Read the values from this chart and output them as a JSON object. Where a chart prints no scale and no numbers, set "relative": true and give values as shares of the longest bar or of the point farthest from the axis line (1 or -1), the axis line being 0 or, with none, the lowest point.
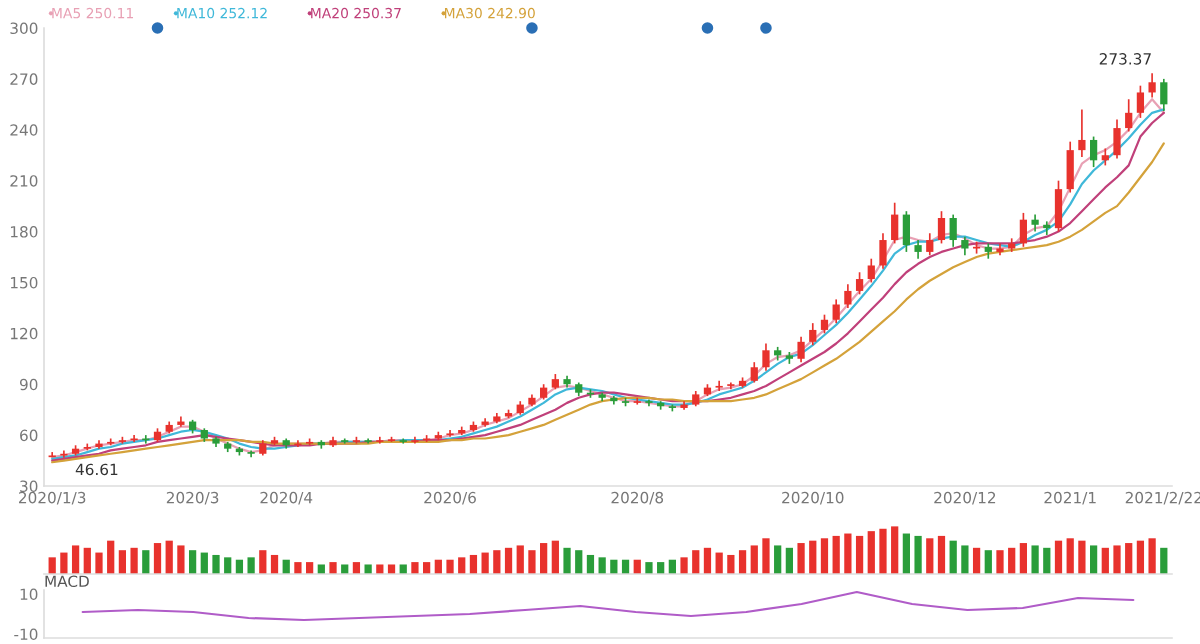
{
  "chart_data": [
    {
      "type": "candlestick",
      "ylim": [
        30,
        300
      ],
      "yticks": [
        30,
        60,
        90,
        120,
        150,
        180,
        210,
        240,
        270,
        300
      ],
      "legend": "top left",
      "categories": [
        "2020/1/3",
        null,
        null,
        null,
        null,
        null,
        null,
        null,
        null,
        null,
        null,
        null,
        "2020/3",
        null,
        null,
        null,
        null,
        null,
        null,
        null,
        "2020/4",
        null,
        null,
        null,
        null,
        null,
        null,
        null,
        null,
        null,
        null,
        null,
        null,
        null,
        "2020/6",
        null,
        null,
        null,
        null,
        null,
        null,
        null,
        null,
        null,
        null,
        null,
        null,
        null,
        null,
        null,
        "2020/8",
        null,
        null,
        null,
        null,
        null,
        null,
        null,
        null,
        null,
        null,
        null,
        null,
        null,
        null,
        "2020/10",
        null,
        null,
        null,
        null,
        null,
        null,
        null,
        null,
        null,
        null,
        null,
        null,
        "2020/12",
        null,
        null,
        null,
        null,
        null,
        null,
        null,
        null,
        "2021/1",
        null,
        null,
        null,
        null,
        null,
        null,
        null,
        "2021/2/22"
      ],
      "ohlc": [
        [
          47,
          50,
          47,
          48
        ],
        [
          48,
          51,
          46.61,
          49
        ],
        [
          49,
          54,
          48,
          52
        ],
        [
          52,
          55,
          51,
          53
        ],
        [
          53,
          57,
          52,
          55
        ],
        [
          55,
          58,
          54,
          56
        ],
        [
          56,
          59,
          55,
          57
        ],
        [
          57,
          60,
          56,
          58
        ],
        [
          58,
          60,
          55,
          57
        ],
        [
          57,
          64,
          56,
          62
        ],
        [
          62,
          68,
          61,
          66
        ],
        [
          66,
          71,
          65,
          68
        ],
        [
          68,
          69,
          61,
          63
        ],
        [
          63,
          64,
          56,
          58
        ],
        [
          58,
          59,
          53,
          55
        ],
        [
          55,
          56,
          50,
          52
        ],
        [
          52,
          53,
          48,
          50
        ],
        [
          50,
          51,
          47,
          49
        ],
        [
          49,
          57,
          48,
          55
        ],
        [
          55,
          59,
          54,
          57
        ],
        [
          57,
          58,
          52,
          54
        ],
        [
          54,
          57,
          53,
          55
        ],
        [
          55,
          58,
          54,
          56
        ],
        [
          56,
          57,
          52,
          54
        ],
        [
          54,
          59,
          53,
          57
        ],
        [
          57,
          58,
          55,
          56
        ],
        [
          56,
          59,
          55,
          57
        ],
        [
          57,
          58,
          55,
          56
        ],
        [
          56,
          59,
          55,
          57
        ],
        [
          57,
          59,
          56,
          57
        ],
        [
          57,
          58,
          55,
          56
        ],
        [
          56,
          59,
          55,
          57
        ],
        [
          57,
          60,
          56,
          58
        ],
        [
          58,
          62,
          57,
          60
        ],
        [
          60,
          63,
          59,
          61
        ],
        [
          61,
          65,
          60,
          63
        ],
        [
          63,
          68,
          62,
          66
        ],
        [
          66,
          70,
          65,
          68
        ],
        [
          68,
          73,
          67,
          71
        ],
        [
          71,
          75,
          70,
          73
        ],
        [
          73,
          80,
          72,
          78
        ],
        [
          78,
          84,
          77,
          82
        ],
        [
          82,
          90,
          81,
          88
        ],
        [
          88,
          96,
          87,
          93
        ],
        [
          93,
          95,
          88,
          90
        ],
        [
          90,
          91,
          83,
          85
        ],
        [
          85,
          87,
          82,
          84
        ],
        [
          84,
          85,
          80,
          82
        ],
        [
          82,
          83,
          78,
          80
        ],
        [
          80,
          82,
          77,
          79
        ],
        [
          79,
          82,
          78,
          80
        ],
        [
          80,
          81,
          77,
          79
        ],
        [
          79,
          80,
          75,
          77
        ],
        [
          77,
          78,
          74,
          76
        ],
        [
          76,
          80,
          75,
          78
        ],
        [
          78,
          86,
          77,
          84
        ],
        [
          84,
          90,
          83,
          88
        ],
        [
          88,
          92,
          86,
          89
        ],
        [
          89,
          91,
          87,
          90
        ],
        [
          89,
          94,
          88,
          92
        ],
        [
          92,
          103,
          91,
          100
        ],
        [
          100,
          114,
          98,
          110
        ],
        [
          110,
          112,
          104,
          107
        ],
        [
          107,
          109,
          102,
          105
        ],
        [
          105,
          118,
          103,
          115
        ],
        [
          115,
          126,
          113,
          122
        ],
        [
          122,
          131,
          120,
          128
        ],
        [
          128,
          140,
          126,
          137
        ],
        [
          137,
          149,
          135,
          145
        ],
        [
          145,
          156,
          143,
          152
        ],
        [
          152,
          164,
          150,
          160
        ],
        [
          160,
          179,
          158,
          175
        ],
        [
          175,
          197,
          173,
          190
        ],
        [
          190,
          192,
          168,
          172
        ],
        [
          172,
          175,
          164,
          168
        ],
        [
          168,
          179,
          166,
          175
        ],
        [
          175,
          192,
          173,
          188
        ],
        [
          188,
          190,
          171,
          175
        ],
        [
          175,
          177,
          166,
          170
        ],
        [
          170,
          174,
          167,
          171
        ],
        [
          171,
          173,
          164,
          168
        ],
        [
          168,
          173,
          166,
          170
        ],
        [
          170,
          176,
          168,
          173
        ],
        [
          173,
          191,
          171,
          187
        ],
        [
          187,
          190,
          180,
          184
        ],
        [
          184,
          186,
          178,
          182
        ],
        [
          182,
          210,
          180,
          205
        ],
        [
          205,
          233,
          203,
          228
        ],
        [
          228,
          252,
          224,
          234
        ],
        [
          234,
          236,
          218,
          222
        ],
        [
          222,
          229,
          219,
          225
        ],
        [
          225,
          246,
          223,
          241
        ],
        [
          241,
          258,
          239,
          250
        ],
        [
          250,
          266,
          247,
          262
        ],
        [
          262,
          273.37,
          259,
          268
        ],
        [
          268,
          270,
          251,
          255
        ]
      ],
      "colors": [
        "#e8322d",
        "#e8322d",
        "#e8322d",
        "#e8322d",
        "#e8322d",
        "#e8322d",
        "#e8322d",
        "#e8322d",
        "#2a9d3a",
        "#e8322d",
        "#e8322d",
        "#e8322d",
        "#2a9d3a",
        "#2a9d3a",
        "#2a9d3a",
        "#2a9d3a",
        "#2a9d3a",
        "#2a9d3a",
        "#e8322d",
        "#e8322d",
        "#2a9d3a",
        "#e8322d",
        "#e8322d",
        "#2a9d3a",
        "#e8322d",
        "#2a9d3a",
        "#e8322d",
        "#2a9d3a",
        "#e8322d",
        "#e8322d",
        "#2a9d3a",
        "#e8322d",
        "#e8322d",
        "#e8322d",
        "#e8322d",
        "#e8322d",
        "#e8322d",
        "#e8322d",
        "#e8322d",
        "#e8322d",
        "#e8322d",
        "#e8322d",
        "#e8322d",
        "#e8322d",
        "#2a9d3a",
        "#2a9d3a",
        "#2a9d3a",
        "#2a9d3a",
        "#2a9d3a",
        "#2a9d3a",
        "#e8322d",
        "#2a9d3a",
        "#2a9d3a",
        "#2a9d3a",
        "#e8322d",
        "#e8322d",
        "#e8322d",
        "#e8322d",
        "#e8322d",
        "#e8322d",
        "#e8322d",
        "#e8322d",
        "#2a9d3a",
        "#2a9d3a",
        "#e8322d",
        "#e8322d",
        "#e8322d",
        "#e8322d",
        "#e8322d",
        "#e8322d",
        "#e8322d",
        "#e8322d",
        "#e8322d",
        "#2a9d3a",
        "#2a9d3a",
        "#e8322d",
        "#e8322d",
        "#2a9d3a",
        "#2a9d3a",
        "#e8322d",
        "#2a9d3a",
        "#e8322d",
        "#e8322d",
        "#e8322d",
        "#2a9d3a",
        "#2a9d3a",
        "#e8322d",
        "#e8322d",
        "#e8322d",
        "#2a9d3a",
        "#e8322d",
        "#e8322d",
        "#e8322d",
        "#e8322d",
        "#e8322d",
        "#2a9d3a"
      ],
      "series": [
        {
          "type": "line",
          "name": "MA5 250.11",
          "color": "#e8a0b4",
          "values": [
            47,
            48,
            50,
            52,
            54,
            55,
            56,
            57,
            57,
            59,
            62,
            65,
            65,
            62,
            58,
            55,
            52,
            50,
            51,
            54,
            55,
            55,
            55,
            55,
            56,
            56,
            56,
            56,
            56,
            57,
            57,
            57,
            57,
            58,
            60,
            61,
            63,
            66,
            68,
            70,
            74,
            78,
            83,
            88,
            89,
            88,
            86,
            84,
            82,
            80,
            80,
            79,
            78,
            77,
            77,
            80,
            84,
            87,
            88,
            90,
            95,
            102,
            106,
            107,
            110,
            116,
            122,
            129,
            137,
            145,
            152,
            163,
            175,
            177,
            175,
            174,
            178,
            179,
            176,
            172,
            170,
            170,
            171,
            178,
            182,
            183,
            192,
            206,
            220,
            225,
            228,
            233,
            240,
            250,
            258,
            250
          ]
        },
        {
          "type": "line",
          "name": "MA10 252.12",
          "color": "#3fb8d9",
          "values": [
            46,
            47,
            48,
            50,
            52,
            53,
            55,
            56,
            57,
            58,
            60,
            62,
            63,
            62,
            60,
            58,
            55,
            53,
            52,
            52,
            53,
            54,
            55,
            55,
            55,
            56,
            56,
            56,
            56,
            56,
            57,
            57,
            57,
            57,
            58,
            59,
            61,
            63,
            65,
            68,
            71,
            75,
            79,
            84,
            87,
            88,
            87,
            86,
            84,
            82,
            81,
            80,
            79,
            78,
            78,
            79,
            81,
            84,
            86,
            88,
            92,
            97,
            102,
            106,
            108,
            113,
            119,
            125,
            132,
            140,
            148,
            157,
            167,
            172,
            174,
            174,
            176,
            177,
            177,
            175,
            173,
            172,
            171,
            174,
            178,
            181,
            186,
            196,
            208,
            216,
            222,
            228,
            235,
            243,
            250,
            252
          ]
        },
        {
          "type": "line",
          "name": "MA20 250.37",
          "color": "#c0407a",
          "values": [
            45,
            46,
            47,
            48,
            49,
            51,
            52,
            53,
            54,
            56,
            57,
            58,
            59,
            60,
            59,
            58,
            57,
            56,
            55,
            54,
            54,
            54,
            54,
            55,
            55,
            55,
            55,
            56,
            56,
            56,
            56,
            56,
            57,
            57,
            57,
            58,
            59,
            60,
            62,
            64,
            66,
            69,
            72,
            75,
            79,
            82,
            84,
            85,
            85,
            84,
            83,
            82,
            81,
            80,
            80,
            80,
            80,
            81,
            82,
            84,
            86,
            89,
            93,
            97,
            101,
            105,
            109,
            114,
            120,
            127,
            134,
            141,
            149,
            156,
            161,
            165,
            168,
            170,
            172,
            173,
            173,
            173,
            173,
            174,
            175,
            177,
            180,
            185,
            192,
            199,
            206,
            212,
            219,
            236,
            244,
            250
          ]
        },
        {
          "type": "line",
          "name": "MA30 242.90",
          "color": "#d4a23a",
          "values": [
            44,
            45,
            46,
            47,
            48,
            49,
            50,
            51,
            52,
            53,
            54,
            55,
            56,
            57,
            57,
            57,
            57,
            56,
            56,
            55,
            55,
            55,
            55,
            55,
            55,
            55,
            55,
            55,
            56,
            56,
            56,
            56,
            56,
            56,
            57,
            57,
            58,
            58,
            59,
            60,
            62,
            64,
            66,
            69,
            72,
            75,
            78,
            80,
            81,
            82,
            82,
            82,
            81,
            81,
            80,
            80,
            80,
            80,
            80,
            81,
            82,
            84,
            87,
            90,
            93,
            97,
            101,
            105,
            110,
            115,
            121,
            127,
            133,
            140,
            146,
            151,
            155,
            159,
            162,
            165,
            167,
            168,
            169,
            170,
            171,
            172,
            174,
            177,
            181,
            186,
            191,
            195,
            203,
            212,
            221,
            232
          ]
        },
        {
          "type": "scatter",
          "marker": "circle",
          "color": "#2a6fb5",
          "values": [
            null,
            null,
            null,
            null,
            null,
            null,
            null,
            null,
            null,
            300,
            null,
            null,
            null,
            null,
            null,
            null,
            null,
            null,
            null,
            null,
            null,
            null,
            null,
            null,
            null,
            null,
            null,
            null,
            null,
            null,
            null,
            null,
            null,
            null,
            null,
            null,
            null,
            null,
            null,
            null,
            null,
            300,
            null,
            null,
            null,
            null,
            null,
            null,
            null,
            null,
            null,
            null,
            null,
            null,
            null,
            null,
            300,
            null,
            null,
            null,
            null,
            300,
            null,
            null,
            null,
            null,
            null,
            null,
            null,
            null,
            null,
            null,
            null,
            null,
            null,
            null,
            null,
            null,
            null,
            null,
            null,
            null,
            null,
            null,
            null,
            null,
            null,
            null,
            null,
            null,
            null,
            null,
            null,
            null,
            null,
            null
          ]
        }
      ],
      "annotations": [
        "273.37",
        "46.61"
      ]
    },
    {
      "type": "bar",
      "relative": true,
      "tick_labels": false,
      "categories": [
        null,
        null,
        null,
        null,
        null,
        null,
        null,
        null,
        null,
        null,
        null,
        null,
        null,
        null,
        null,
        null,
        null,
        null,
        null,
        null,
        null,
        null,
        null,
        null,
        null,
        null,
        null,
        null,
        null,
        null,
        null,
        null,
        null,
        null,
        null,
        null,
        null,
        null,
        null,
        null,
        null,
        null,
        null,
        null,
        null,
        null,
        null,
        null,
        null,
        null,
        null,
        null,
        null,
        null,
        null,
        null,
        null,
        null,
        null,
        null,
        null,
        null,
        null,
        null,
        null,
        null,
        null,
        null,
        null,
        null,
        null,
        null,
        null,
        null,
        null,
        null,
        null,
        null,
        null,
        null,
        null,
        null,
        null,
        null,
        null,
        null,
        null,
        null,
        null,
        null,
        null,
        null,
        null,
        null,
        null,
        null
      ],
      "values": [
        0.35,
        0.45,
        0.6,
        0.55,
        0.45,
        0.7,
        0.5,
        0.55,
        0.5,
        0.65,
        0.7,
        0.6,
        0.5,
        0.45,
        0.4,
        0.35,
        0.3,
        0.35,
        0.5,
        0.4,
        0.3,
        0.25,
        0.25,
        0.2,
        0.25,
        0.2,
        0.25,
        0.2,
        0.2,
        0.2,
        0.2,
        0.25,
        0.25,
        0.3,
        0.3,
        0.35,
        0.4,
        0.45,
        0.5,
        0.55,
        0.6,
        0.5,
        0.65,
        0.7,
        0.55,
        0.5,
        0.4,
        0.35,
        0.3,
        0.3,
        0.3,
        0.25,
        0.25,
        0.3,
        0.35,
        0.5,
        0.55,
        0.45,
        0.4,
        0.5,
        0.6,
        0.75,
        0.6,
        0.55,
        0.65,
        0.7,
        0.75,
        0.8,
        0.85,
        0.8,
        0.9,
        0.95,
        1.0,
        0.85,
        0.8,
        0.75,
        0.8,
        0.7,
        0.6,
        0.55,
        0.5,
        0.5,
        0.55,
        0.65,
        0.6,
        0.55,
        0.7,
        0.75,
        0.7,
        0.6,
        0.55,
        0.6,
        0.65,
        0.7,
        0.75,
        0.55
      ],
      "colors": [
        "#e8322d",
        "#e8322d",
        "#e8322d",
        "#e8322d",
        "#e8322d",
        "#e8322d",
        "#e8322d",
        "#e8322d",
        "#2a9d3a",
        "#e8322d",
        "#e8322d",
        "#e8322d",
        "#2a9d3a",
        "#2a9d3a",
        "#2a9d3a",
        "#2a9d3a",
        "#2a9d3a",
        "#2a9d3a",
        "#e8322d",
        "#e8322d",
        "#2a9d3a",
        "#e8322d",
        "#e8322d",
        "#2a9d3a",
        "#e8322d",
        "#2a9d3a",
        "#e8322d",
        "#2a9d3a",
        "#e8322d",
        "#e8322d",
        "#2a9d3a",
        "#e8322d",
        "#e8322d",
        "#e8322d",
        "#e8322d",
        "#e8322d",
        "#e8322d",
        "#e8322d",
        "#e8322d",
        "#e8322d",
        "#e8322d",
        "#e8322d",
        "#e8322d",
        "#e8322d",
        "#2a9d3a",
        "#2a9d3a",
        "#2a9d3a",
        "#2a9d3a",
        "#2a9d3a",
        "#2a9d3a",
        "#e8322d",
        "#2a9d3a",
        "#2a9d3a",
        "#2a9d3a",
        "#e8322d",
        "#e8322d",
        "#e8322d",
        "#e8322d",
        "#e8322d",
        "#e8322d",
        "#e8322d",
        "#e8322d",
        "#2a9d3a",
        "#2a9d3a",
        "#e8322d",
        "#e8322d",
        "#e8322d",
        "#e8322d",
        "#e8322d",
        "#e8322d",
        "#e8322d",
        "#e8322d",
        "#e8322d",
        "#2a9d3a",
        "#2a9d3a",
        "#e8322d",
        "#e8322d",
        "#2a9d3a",
        "#2a9d3a",
        "#e8322d",
        "#2a9d3a",
        "#e8322d",
        "#e8322d",
        "#e8322d",
        "#2a9d3a",
        "#2a9d3a",
        "#e8322d",
        "#e8322d",
        "#e8322d",
        "#2a9d3a",
        "#e8322d",
        "#e8322d",
        "#e8322d",
        "#e8322d",
        "#e8322d",
        "#2a9d3a"
      ]
    },
    {
      "type": "line",
      "title": "MACD",
      "tick_labels": "y",
      "ylim": [
        -12,
        12
      ],
      "yticks": [
        -10,
        10
      ],
      "categories": [
        null,
        null,
        null,
        null,
        null,
        null,
        null,
        null,
        null,
        null,
        null,
        null,
        null,
        null,
        null,
        null,
        null,
        null,
        null,
        null
      ],
      "series": [
        {
          "color": "#b05cc8",
          "values": [
            1,
            2,
            1,
            -2,
            -3,
            -2,
            -1,
            0,
            2,
            4,
            1,
            -1,
            1,
            5,
            11,
            5,
            2,
            3,
            8,
            7
          ]
        }
      ]
    }
  ]
}
